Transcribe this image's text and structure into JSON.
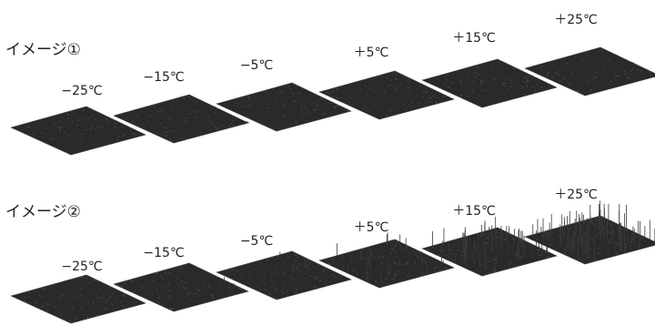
{
  "rows": [
    {
      "label": "イメージ①",
      "items": [
        "−25℃",
        "−15℃",
        "−5℃",
        "＋5℃",
        "＋15℃",
        "＋25℃"
      ]
    },
    {
      "label": "イメージ②",
      "items": [
        "−25℃",
        "−15℃",
        "−5℃",
        "＋5℃",
        "＋15℃",
        "＋25℃"
      ]
    }
  ]
}
